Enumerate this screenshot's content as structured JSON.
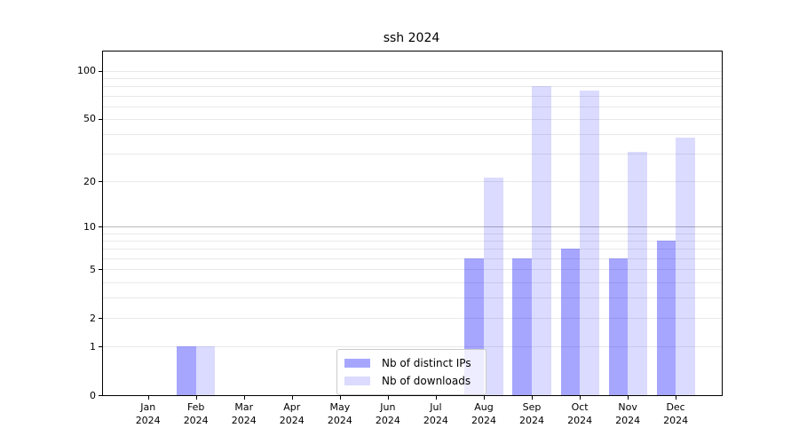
{
  "chart_data": {
    "type": "bar",
    "title": "ssh 2024",
    "categories": [
      "Jan",
      "Feb",
      "Mar",
      "Apr",
      "May",
      "Jun",
      "Jul",
      "Aug",
      "Sep",
      "Oct",
      "Nov",
      "Dec"
    ],
    "year_label": "2024",
    "series": [
      {
        "name": "Nb of distinct IPs",
        "color": "#0000ff",
        "alpha": 0.35,
        "values": [
          0,
          1,
          0,
          0,
          0,
          0,
          0,
          6,
          6,
          7,
          6,
          8
        ]
      },
      {
        "name": "Nb of downloads",
        "color": "#0000ff",
        "alpha": 0.14,
        "values": [
          0,
          1,
          0,
          0,
          0,
          0,
          0,
          21,
          80,
          75,
          31,
          38
        ]
      }
    ],
    "yscale": "log10(value+1)",
    "yticks": [
      100,
      50,
      20,
      10,
      5,
      2,
      1,
      0
    ],
    "ylim": [
      0,
      132
    ],
    "gridline_values": [
      1,
      2,
      3,
      4,
      5,
      6,
      7,
      8,
      9,
      10,
      20,
      30,
      40,
      50,
      60,
      70,
      80,
      90,
      100
    ],
    "emphasized_gridline": 10,
    "grid_color": "#e9e9e9",
    "grid_emphasis_color": "#b9b9b9",
    "legend": {
      "position": "lower center",
      "labels": [
        "Nb of distinct IPs",
        "Nb of downloads"
      ]
    },
    "grid": true
  }
}
